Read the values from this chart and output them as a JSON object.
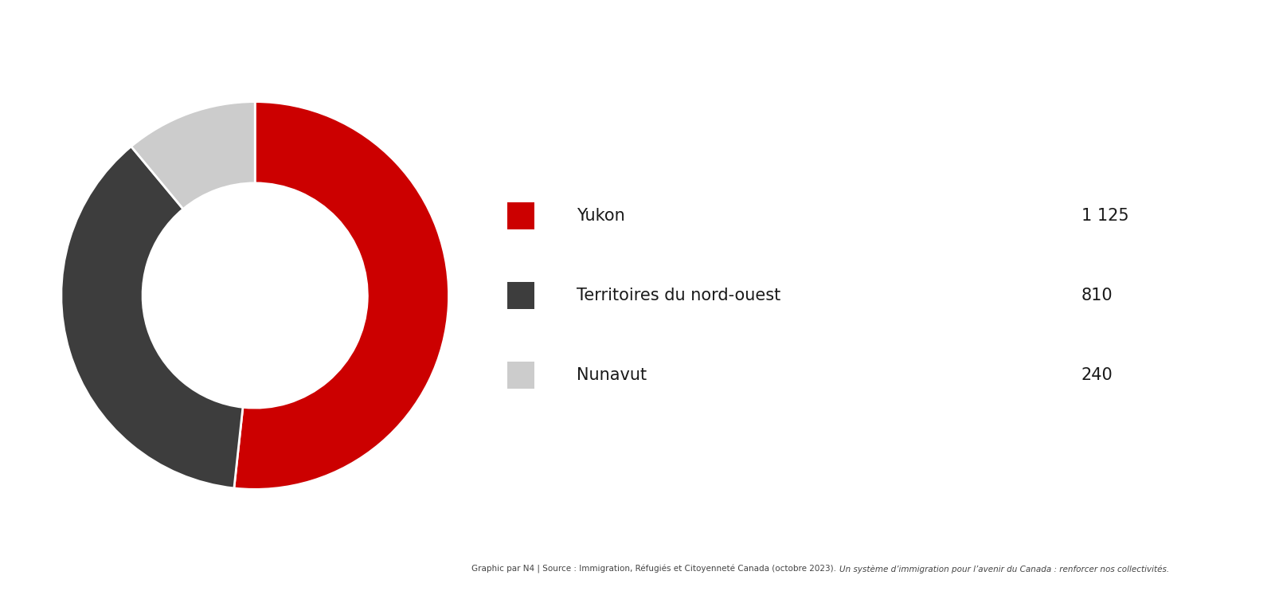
{
  "labels": [
    "Yukon",
    "Territoires du nord-ouest",
    "Nunavut"
  ],
  "values": [
    1125,
    810,
    240
  ],
  "value_labels": [
    "1 125",
    "810",
    "240"
  ],
  "colors": [
    "#CC0000",
    "#3d3d3d",
    "#CCCCCC"
  ],
  "background_color": "#FFFFFF",
  "footnote_normal": "Graphic par N4 | Source : Immigration, Réfugiés et Citoyenneté Canada (octobre 2023). ",
  "footnote_italic": "Un système d’immigration pour l’avenir du Canada : renforcer nos collectivités.",
  "legend_label_fontsize": 15,
  "legend_value_fontsize": 15,
  "footnote_fontsize": 7.5,
  "startangle": 90
}
